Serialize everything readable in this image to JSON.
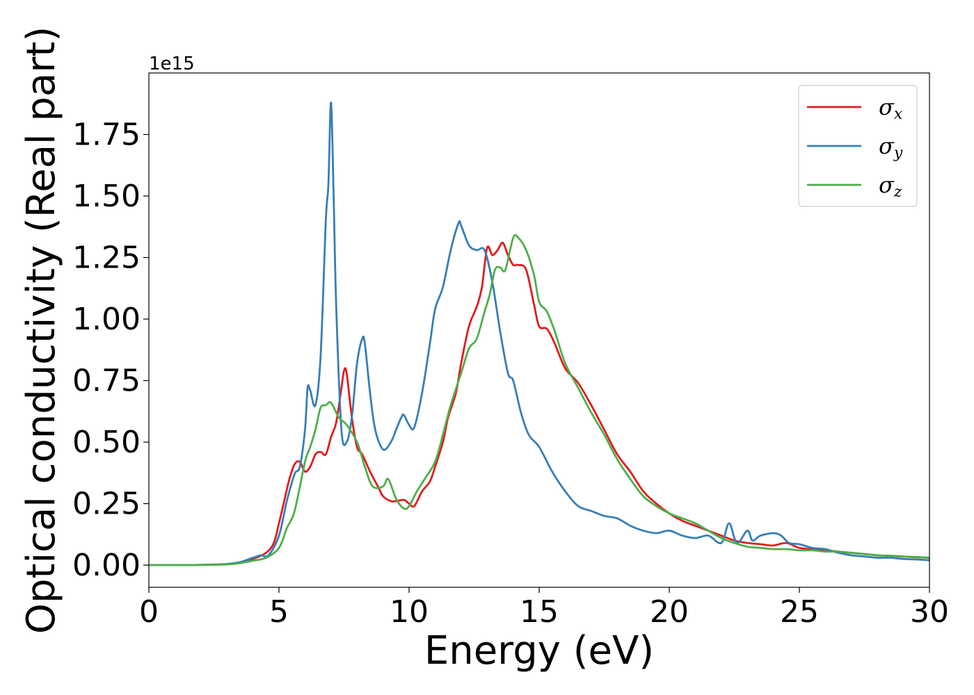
{
  "chart_data": {
    "type": "line",
    "xlabel": "Energy (eV)",
    "ylabel": "Optical conductivity (Real part)",
    "y_offset_text": "1e15",
    "xlim": [
      0,
      30
    ],
    "ylim": [
      -0.09,
      2.0
    ],
    "y_scale_factor": 1000000000000000.0,
    "xticks": [
      0,
      5,
      10,
      15,
      20,
      25,
      30
    ],
    "xtick_labels": [
      "0",
      "5",
      "10",
      "15",
      "20",
      "25",
      "30"
    ],
    "yticks": [
      0.0,
      0.25,
      0.5,
      0.75,
      1.0,
      1.25,
      1.5,
      1.75
    ],
    "ytick_labels": [
      "0.00",
      "0.25",
      "0.50",
      "0.75",
      "1.00",
      "1.25",
      "1.50",
      "1.75"
    ],
    "grid": false,
    "legend_position": "top-right",
    "series": [
      {
        "name": "σ",
        "subscript": "x",
        "color": "#e41a1c",
        "x": [
          0,
          1,
          2,
          3,
          3.5,
          4,
          4.5,
          4.8,
          5,
          5.2,
          5.4,
          5.6,
          5.8,
          6,
          6.2,
          6.4,
          6.6,
          6.8,
          7,
          7.2,
          7.4,
          7.5,
          7.6,
          7.8,
          8,
          8.2,
          8.5,
          8.8,
          9,
          9.3,
          9.5,
          9.8,
          10,
          10.2,
          10.5,
          10.8,
          11,
          11.3,
          11.5,
          11.8,
          12,
          12.3,
          12.6,
          12.8,
          13,
          13.2,
          13.4,
          13.6,
          13.8,
          14,
          14.2,
          14.5,
          14.8,
          15,
          15.3,
          15.6,
          16,
          16.5,
          17,
          17.5,
          18,
          18.5,
          19,
          19.5,
          20,
          20.5,
          21,
          21.5,
          22,
          22.5,
          23,
          23.5,
          24,
          24.5,
          25,
          25.5,
          26,
          26.5,
          27,
          27.5,
          28,
          28.5,
          29,
          29.5,
          30
        ],
        "y": [
          0,
          0,
          0.001,
          0.004,
          0.01,
          0.025,
          0.05,
          0.09,
          0.17,
          0.26,
          0.35,
          0.41,
          0.42,
          0.38,
          0.4,
          0.45,
          0.46,
          0.45,
          0.52,
          0.58,
          0.72,
          0.79,
          0.78,
          0.6,
          0.48,
          0.45,
          0.38,
          0.32,
          0.28,
          0.26,
          0.26,
          0.265,
          0.25,
          0.24,
          0.3,
          0.34,
          0.4,
          0.5,
          0.6,
          0.7,
          0.82,
          0.97,
          1.05,
          1.13,
          1.29,
          1.26,
          1.28,
          1.31,
          1.26,
          1.22,
          1.22,
          1.2,
          1.06,
          0.97,
          0.96,
          0.9,
          0.8,
          0.74,
          0.65,
          0.55,
          0.45,
          0.38,
          0.3,
          0.25,
          0.21,
          0.18,
          0.16,
          0.14,
          0.12,
          0.1,
          0.09,
          0.085,
          0.08,
          0.09,
          0.07,
          0.065,
          0.06,
          0.055,
          0.05,
          0.045,
          0.04,
          0.038,
          0.035,
          0.032,
          0.03
        ]
      },
      {
        "name": "σ",
        "subscript": "y",
        "color": "#377eb8",
        "x": [
          0,
          1,
          2,
          3,
          3.5,
          4,
          4.3,
          4.6,
          5,
          5.3,
          5.6,
          5.8,
          6,
          6.1,
          6.2,
          6.4,
          6.6,
          6.8,
          6.9,
          7,
          7.1,
          7.2,
          7.4,
          7.6,
          7.8,
          8,
          8.2,
          8.3,
          8.5,
          8.7,
          9,
          9.3,
          9.5,
          9.7,
          9.8,
          10,
          10.2,
          10.5,
          10.8,
          11,
          11.3,
          11.6,
          11.9,
          12,
          12.3,
          12.6,
          12.9,
          13.2,
          13.5,
          13.8,
          14,
          14.3,
          14.6,
          15,
          15.5,
          16,
          16.5,
          17,
          17.5,
          18,
          18.5,
          19,
          19.5,
          20,
          20.5,
          21,
          21.5,
          22,
          22.3,
          22.6,
          23,
          23.2,
          23.5,
          24,
          24.3,
          24.6,
          25,
          25.5,
          26,
          26.5,
          27,
          27.5,
          28,
          28.5,
          29,
          29.5,
          30
        ],
        "y": [
          0,
          0,
          0.001,
          0.005,
          0.012,
          0.03,
          0.04,
          0.04,
          0.12,
          0.26,
          0.37,
          0.4,
          0.55,
          0.72,
          0.71,
          0.65,
          0.85,
          1.4,
          1.55,
          1.88,
          1.5,
          1.05,
          0.55,
          0.5,
          0.6,
          0.82,
          0.92,
          0.9,
          0.7,
          0.55,
          0.47,
          0.5,
          0.55,
          0.6,
          0.61,
          0.57,
          0.56,
          0.7,
          0.9,
          1.04,
          1.13,
          1.28,
          1.39,
          1.38,
          1.3,
          1.28,
          1.28,
          1.15,
          0.95,
          0.78,
          0.75,
          0.62,
          0.53,
          0.48,
          0.38,
          0.3,
          0.24,
          0.22,
          0.2,
          0.19,
          0.16,
          0.14,
          0.13,
          0.14,
          0.12,
          0.11,
          0.12,
          0.09,
          0.17,
          0.09,
          0.14,
          0.1,
          0.12,
          0.13,
          0.12,
          0.09,
          0.085,
          0.07,
          0.065,
          0.05,
          0.04,
          0.035,
          0.03,
          0.03,
          0.025,
          0.023,
          0.02
        ]
      },
      {
        "name": "σ",
        "subscript": "z",
        "color": "#4daf4a",
        "x": [
          0,
          1,
          2,
          3,
          3.5,
          4,
          4.5,
          5,
          5.3,
          5.6,
          6,
          6.2,
          6.4,
          6.6,
          6.8,
          7,
          7.3,
          7.6,
          8,
          8.3,
          8.6,
          9,
          9.2,
          9.5,
          9.8,
          10,
          10.3,
          10.6,
          11,
          11.3,
          11.6,
          12,
          12.3,
          12.6,
          12.9,
          13.1,
          13.3,
          13.5,
          13.7,
          14,
          14.2,
          14.5,
          14.8,
          15,
          15.3,
          15.6,
          16,
          16.5,
          17,
          17.5,
          18,
          18.5,
          19,
          19.5,
          20,
          20.5,
          21,
          21.5,
          22,
          22.5,
          23,
          23.5,
          24,
          24.5,
          25,
          25.5,
          26,
          26.5,
          27,
          27.5,
          28,
          28.5,
          29,
          29.5,
          30
        ],
        "y": [
          0,
          0,
          0.001,
          0.003,
          0.008,
          0.018,
          0.03,
          0.07,
          0.15,
          0.22,
          0.42,
          0.48,
          0.55,
          0.64,
          0.65,
          0.66,
          0.6,
          0.57,
          0.5,
          0.4,
          0.32,
          0.32,
          0.35,
          0.27,
          0.23,
          0.24,
          0.3,
          0.35,
          0.42,
          0.53,
          0.65,
          0.78,
          0.88,
          0.92,
          1.03,
          1.1,
          1.2,
          1.21,
          1.2,
          1.33,
          1.33,
          1.28,
          1.18,
          1.07,
          1.03,
          0.95,
          0.82,
          0.72,
          0.62,
          0.53,
          0.43,
          0.35,
          0.28,
          0.24,
          0.21,
          0.19,
          0.17,
          0.14,
          0.11,
          0.09,
          0.075,
          0.07,
          0.065,
          0.065,
          0.06,
          0.06,
          0.055,
          0.055,
          0.05,
          0.045,
          0.04,
          0.038,
          0.035,
          0.033,
          0.03
        ]
      }
    ]
  }
}
